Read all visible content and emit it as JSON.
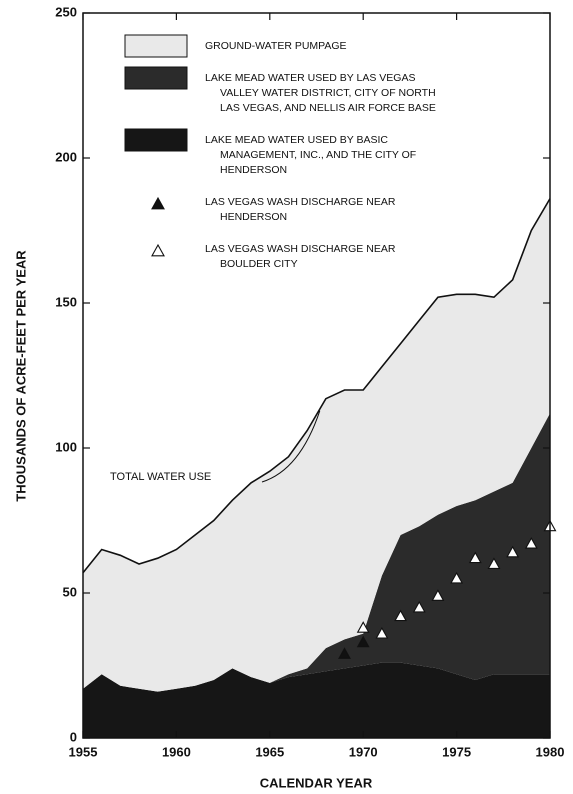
{
  "chart_data": {
    "type": "area",
    "x": [
      1955,
      1956,
      1957,
      1958,
      1959,
      1960,
      1961,
      1962,
      1963,
      1964,
      1965,
      1966,
      1967,
      1968,
      1969,
      1970,
      1971,
      1972,
      1973,
      1974,
      1975,
      1976,
      1977,
      1978,
      1979,
      1980
    ],
    "xlabel": "CALENDAR YEAR",
    "ylabel": "THOUSANDS OF ACRE-FEET PER YEAR",
    "xlim": [
      1955,
      1980
    ],
    "xticks": [
      1955,
      1960,
      1965,
      1970,
      1975,
      1980
    ],
    "ylim": [
      0,
      250
    ],
    "yticks": [
      0,
      50,
      100,
      150,
      200,
      250
    ],
    "series": [
      {
        "name": "GROUND-WATER PUMPAGE",
        "kind": "area",
        "color": "#e9e9e9",
        "values": [
          40,
          43,
          45,
          43,
          46,
          48,
          52,
          55,
          58,
          67,
          73,
          75,
          82,
          86,
          86,
          84,
          72,
          66,
          71,
          75,
          73,
          71,
          67,
          70,
          75,
          74
        ]
      },
      {
        "name": "LAKE MEAD WATER USED BY LAS VEGAS VALLEY WATER DISTRICT, CITY OF NORTH LAS VEGAS, AND NELLIS AIR FORCE BASE",
        "kind": "area",
        "color": "#2b2b2b",
        "values": [
          0,
          0,
          0,
          0,
          0,
          0,
          0,
          0,
          0,
          0,
          0,
          1,
          2,
          8,
          10,
          11,
          30,
          44,
          48,
          53,
          58,
          62,
          63,
          66,
          78,
          90
        ]
      },
      {
        "name": "LAKE MEAD WATER USED BY BASIC MANAGEMENT, INC., AND THE CITY OF HENDERSON",
        "kind": "area",
        "color": "#161616",
        "values": [
          17,
          22,
          18,
          17,
          16,
          17,
          18,
          20,
          24,
          21,
          19,
          21,
          22,
          23,
          24,
          25,
          26,
          26,
          25,
          24,
          22,
          20,
          22,
          22,
          22,
          22
        ]
      },
      {
        "name": "LAS VEGAS WASH DISCHARGE NEAR HENDERSON",
        "kind": "scatter",
        "marker": "triangle-filled",
        "color": "#111111",
        "x": [
          1969,
          1970
        ],
        "values": [
          29,
          33
        ]
      },
      {
        "name": "LAS VEGAS WASH DISCHARGE NEAR BOULDER CITY",
        "kind": "scatter",
        "marker": "triangle-open",
        "color": "#111111",
        "x": [
          1970,
          1971,
          1972,
          1973,
          1974,
          1975,
          1976,
          1977,
          1978,
          1979,
          1980
        ],
        "values": [
          38,
          36,
          42,
          45,
          49,
          55,
          62,
          60,
          64,
          67,
          73
        ]
      }
    ],
    "total": {
      "name": "TOTAL WATER USE",
      "kind": "line",
      "color": "#111111",
      "values": [
        57,
        65,
        63,
        60,
        62,
        65,
        70,
        75,
        82,
        88,
        92,
        97,
        106,
        117,
        120,
        120,
        128,
        136,
        144,
        152,
        153,
        153,
        152,
        158,
        175,
        186
      ]
    }
  }
}
